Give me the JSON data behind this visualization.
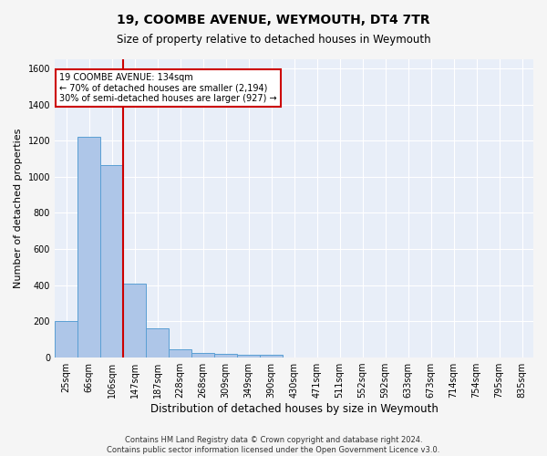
{
  "title": "19, COOMBE AVENUE, WEYMOUTH, DT4 7TR",
  "subtitle": "Size of property relative to detached houses in Weymouth",
  "xlabel": "Distribution of detached houses by size in Weymouth",
  "ylabel": "Number of detached properties",
  "footer_line1": "Contains HM Land Registry data © Crown copyright and database right 2024.",
  "footer_line2": "Contains public sector information licensed under the Open Government Licence v3.0.",
  "categories": [
    "25sqm",
    "66sqm",
    "106sqm",
    "147sqm",
    "187sqm",
    "228sqm",
    "268sqm",
    "309sqm",
    "349sqm",
    "390sqm",
    "430sqm",
    "471sqm",
    "511sqm",
    "552sqm",
    "592sqm",
    "633sqm",
    "673sqm",
    "714sqm",
    "754sqm",
    "795sqm",
    "835sqm"
  ],
  "values": [
    202,
    1222,
    1063,
    410,
    162,
    46,
    26,
    21,
    15,
    15,
    0,
    0,
    0,
    0,
    0,
    0,
    0,
    0,
    0,
    0,
    0
  ],
  "bar_color": "#aec6e8",
  "bar_edge_color": "#5a9fd4",
  "background_color": "#e8eef8",
  "grid_color": "#ffffff",
  "fig_background": "#f5f5f5",
  "red_line_x": 2.5,
  "red_line_color": "#cc0000",
  "annotation_line1": "19 COOMBE AVENUE: 134sqm",
  "annotation_line2": "← 70% of detached houses are smaller (2,194)",
  "annotation_line3": "30% of semi-detached houses are larger (927) →",
  "annotation_box_color": "#cc0000",
  "ylim": [
    0,
    1650
  ],
  "yticks": [
    0,
    200,
    400,
    600,
    800,
    1000,
    1200,
    1400,
    1600
  ],
  "title_fontsize": 10,
  "subtitle_fontsize": 8.5,
  "ylabel_fontsize": 8,
  "xlabel_fontsize": 8.5,
  "tick_fontsize": 7,
  "annotation_fontsize": 7,
  "footer_fontsize": 6
}
